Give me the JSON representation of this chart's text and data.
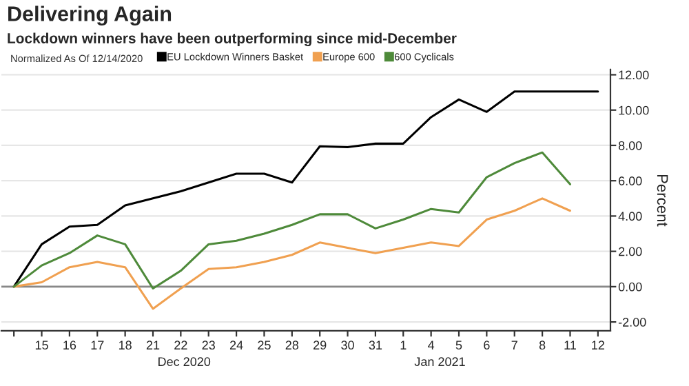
{
  "chart_data": {
    "type": "line",
    "title": "Delivering Again",
    "subtitle": "Lockdown winners have been outperforming since mid-December",
    "legend_title": "Normalized As Of 12/14/2020",
    "ylabel": "Percent",
    "categories": [
      null,
      "15",
      "16",
      "17",
      "18",
      "21",
      "22",
      "23",
      "24",
      "25",
      "28",
      "29",
      "30",
      "31",
      "1",
      "4",
      "5",
      "6",
      "7",
      "8",
      "11",
      "12"
    ],
    "series": [
      {
        "name": "EU Lockdown Winners Basket",
        "color": "#000000",
        "values": [
          0,
          2.4,
          3.4,
          3.5,
          4.6,
          5.0,
          5.4,
          5.9,
          6.4,
          6.4,
          5.9,
          7.95,
          7.9,
          8.1,
          8.1,
          9.6,
          10.6,
          9.9,
          11.05,
          11.05,
          11.05,
          11.05
        ]
      },
      {
        "name": "Europe 600",
        "color": "#f0a050",
        "values": [
          0,
          0.25,
          1.1,
          1.4,
          1.1,
          -1.25,
          -0.1,
          1.0,
          1.1,
          1.4,
          1.8,
          2.5,
          2.2,
          1.9,
          2.2,
          2.5,
          2.3,
          3.8,
          4.3,
          5.0,
          4.3,
          null
        ]
      },
      {
        "name": "600 Cyclicals",
        "color": "#4e8a3a",
        "values": [
          0,
          1.2,
          1.9,
          2.9,
          2.4,
          -0.1,
          0.9,
          2.4,
          2.6,
          3.0,
          3.5,
          4.1,
          4.1,
          3.3,
          3.8,
          4.4,
          4.2,
          6.2,
          7.0,
          7.6,
          5.8,
          null
        ]
      }
    ],
    "ylim": [
      -2.5,
      12.3
    ],
    "yticks": [
      {
        "value": -2,
        "label": "-2.00"
      },
      {
        "value": 0,
        "label": "0.00"
      },
      {
        "value": 2,
        "label": "2.00"
      },
      {
        "value": 4,
        "label": "4.00"
      },
      {
        "value": 6,
        "label": "6.00"
      },
      {
        "value": 8,
        "label": "8.00"
      },
      {
        "value": 10,
        "label": "10.00"
      },
      {
        "value": 12,
        "label": "12.00"
      }
    ],
    "ref_lines": [
      {
        "axis": "y",
        "value": 0,
        "color": "#888888"
      }
    ],
    "annotations": [
      "Dec 2020",
      "Jan 2021"
    ],
    "grid": "y",
    "legend": "top",
    "marker": "none",
    "line_style": "solid"
  }
}
